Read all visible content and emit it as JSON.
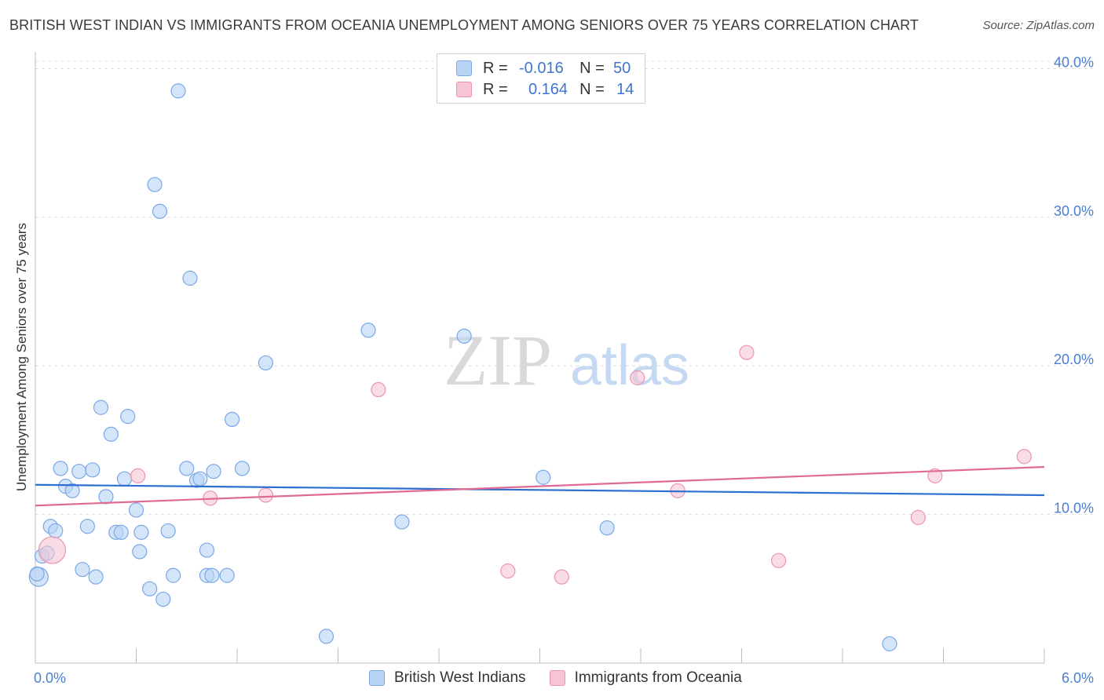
{
  "title": "BRITISH WEST INDIAN VS IMMIGRANTS FROM OCEANIA UNEMPLOYMENT AMONG SENIORS OVER 75 YEARS CORRELATION CHART",
  "source": "Source: ZipAtlas.com",
  "watermark": {
    "zip": "ZIP",
    "atlas": "atlas"
  },
  "legend": {
    "r_label": "R =",
    "n_label": "N =",
    "rows": [
      {
        "name": "British West Indians",
        "r": "-0.016",
        "n": "50"
      },
      {
        "name": "Immigrants from Oceania",
        "r": "0.164",
        "n": "14"
      }
    ]
  },
  "chart_data": {
    "type": "scatter",
    "title": "BRITISH WEST INDIAN VS IMMIGRANTS FROM OCEANIA UNEMPLOYMENT AMONG SENIORS OVER 75 YEARS CORRELATION CHART",
    "xlabel": "",
    "ylabel": "Unemployment Among Seniors over 75 years",
    "xlim": [
      0,
      6.0
    ],
    "ylim": [
      0,
      40.5
    ],
    "x_tick_labels": [
      "0.0%",
      "6.0%"
    ],
    "y_ticks": [
      10,
      20,
      30,
      40
    ],
    "y_tick_labels": [
      "10.0%",
      "20.0%",
      "30.0%",
      "40.0%"
    ],
    "grid": true,
    "colors": {
      "blue_fill": "#b9d3f5",
      "blue_stroke": "#7aa8e6",
      "blue_line": "#2e6fd0",
      "pink_fill": "#f7c4d4",
      "pink_stroke": "#eb94b2",
      "pink_line": "#e06a96"
    },
    "series": [
      {
        "name": "British West Indians",
        "color": "#7aa8e6",
        "trend": {
          "x": [
            0,
            6.0
          ],
          "y": [
            12.0,
            11.3
          ]
        },
        "points": [
          [
            0.02,
            5.8,
            12
          ],
          [
            0.04,
            7.2,
            9
          ],
          [
            0.07,
            7.4,
            9
          ],
          [
            0.09,
            9.2,
            9
          ],
          [
            0.12,
            8.9,
            9
          ],
          [
            0.15,
            13.1,
            9
          ],
          [
            0.18,
            11.9,
            9
          ],
          [
            0.22,
            11.6,
            9
          ],
          [
            0.26,
            12.9,
            9
          ],
          [
            0.28,
            6.3,
            9
          ],
          [
            0.31,
            9.2,
            9
          ],
          [
            0.34,
            13.0,
            9
          ],
          [
            0.36,
            5.8,
            9
          ],
          [
            0.39,
            17.2,
            9
          ],
          [
            0.42,
            11.2,
            9
          ],
          [
            0.45,
            15.4,
            9
          ],
          [
            0.48,
            8.8,
            9
          ],
          [
            0.51,
            8.8,
            9
          ],
          [
            0.53,
            12.4,
            9
          ],
          [
            0.55,
            16.6,
            9
          ],
          [
            0.6,
            10.3,
            9
          ],
          [
            0.62,
            7.5,
            9
          ],
          [
            0.63,
            8.8,
            9
          ],
          [
            0.68,
            5.0,
            9
          ],
          [
            0.71,
            32.2,
            9
          ],
          [
            0.74,
            30.4,
            9
          ],
          [
            0.76,
            4.3,
            9
          ],
          [
            0.79,
            8.9,
            9
          ],
          [
            0.82,
            5.9,
            9
          ],
          [
            0.85,
            38.5,
            9
          ],
          [
            0.9,
            13.1,
            9
          ],
          [
            0.92,
            25.9,
            9
          ],
          [
            0.96,
            12.3,
            9
          ],
          [
            0.98,
            12.4,
            9
          ],
          [
            1.02,
            5.9,
            9
          ],
          [
            1.02,
            7.6,
            9
          ],
          [
            1.05,
            5.9,
            9
          ],
          [
            1.06,
            12.9,
            9
          ],
          [
            1.14,
            5.9,
            9
          ],
          [
            1.17,
            16.4,
            9
          ],
          [
            1.23,
            13.1,
            9
          ],
          [
            1.37,
            20.2,
            9
          ],
          [
            1.73,
            1.8,
            9
          ],
          [
            1.98,
            22.4,
            9
          ],
          [
            2.18,
            9.5,
            9
          ],
          [
            2.55,
            22.0,
            9
          ],
          [
            3.02,
            12.5,
            9
          ],
          [
            3.4,
            9.1,
            9
          ],
          [
            5.08,
            1.3,
            9
          ],
          [
            0.01,
            6.0,
            9
          ]
        ]
      },
      {
        "name": "Immigrants from Oceania",
        "color": "#eb94b2",
        "trend": {
          "x": [
            0,
            6.0
          ],
          "y": [
            10.6,
            13.2
          ]
        },
        "points": [
          [
            0.1,
            7.6,
            17
          ],
          [
            0.61,
            12.6,
            9
          ],
          [
            1.04,
            11.1,
            9
          ],
          [
            1.37,
            11.3,
            9
          ],
          [
            2.04,
            18.4,
            9
          ],
          [
            2.81,
            6.2,
            9
          ],
          [
            3.13,
            5.8,
            9
          ],
          [
            3.58,
            19.2,
            9
          ],
          [
            3.82,
            11.6,
            9
          ],
          [
            4.23,
            20.9,
            9
          ],
          [
            4.42,
            6.9,
            9
          ],
          [
            5.25,
            9.8,
            9
          ],
          [
            5.35,
            12.6,
            9
          ],
          [
            5.88,
            13.9,
            9
          ]
        ]
      }
    ]
  }
}
